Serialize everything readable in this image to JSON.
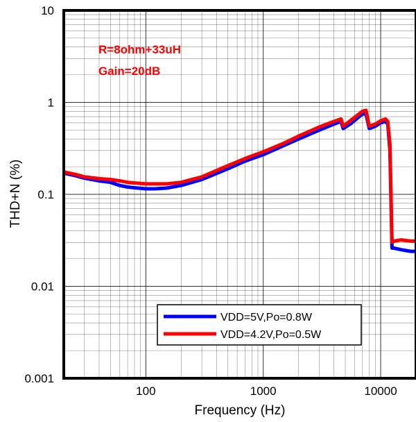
{
  "chart_data": {
    "type": "line",
    "xlabel": "Frequency (Hz)",
    "ylabel": "THD+N (%)",
    "xscale": "log",
    "yscale": "log",
    "xlim": [
      20,
      20000
    ],
    "ylim": [
      0.001,
      10
    ],
    "grid": true,
    "legend_position": "bottom-center",
    "x_tick_labels": [
      "100",
      "1000",
      "10000"
    ],
    "y_tick_labels": [
      "0.001",
      "0.01",
      "0.1",
      "1",
      "10"
    ],
    "annotations": [
      "R=8ohm+33uH",
      "Gain=20dB"
    ],
    "annotation_color": "#ff0000",
    "series": [
      {
        "name": "VDD=5V,Po=0.8W",
        "color": "#0000ff",
        "x": [
          20,
          25,
          30,
          40,
          50,
          60,
          70,
          80,
          100,
          120,
          150,
          200,
          300,
          500,
          700,
          1000,
          1500,
          2000,
          3000,
          4000,
          4600,
          4800,
          5500,
          7000,
          7500,
          8000,
          9000,
          10000,
          11000,
          11500,
          12000,
          12500,
          13000,
          15000,
          18000,
          20000
        ],
        "values": [
          0.17,
          0.16,
          0.15,
          0.14,
          0.135,
          0.125,
          0.12,
          0.118,
          0.115,
          0.115,
          0.117,
          0.125,
          0.145,
          0.19,
          0.23,
          0.27,
          0.34,
          0.4,
          0.5,
          0.58,
          0.62,
          0.52,
          0.58,
          0.75,
          0.75,
          0.52,
          0.55,
          0.6,
          0.62,
          0.58,
          0.3,
          0.026,
          0.026,
          0.025,
          0.024,
          0.024
        ]
      },
      {
        "name": "VDD=4.2V,Po=0.5W",
        "color": "#ff0000",
        "x": [
          20,
          25,
          30,
          40,
          50,
          60,
          70,
          80,
          100,
          120,
          150,
          200,
          300,
          500,
          700,
          1000,
          1500,
          2000,
          3000,
          4000,
          4600,
          4800,
          5500,
          7000,
          7500,
          8000,
          9000,
          10000,
          11000,
          11500,
          12000,
          12500,
          13000,
          15000,
          18000,
          20000
        ],
        "values": [
          0.175,
          0.165,
          0.155,
          0.148,
          0.145,
          0.14,
          0.135,
          0.133,
          0.13,
          0.13,
          0.13,
          0.135,
          0.155,
          0.205,
          0.245,
          0.29,
          0.36,
          0.43,
          0.54,
          0.62,
          0.66,
          0.55,
          0.63,
          0.8,
          0.82,
          0.55,
          0.58,
          0.63,
          0.66,
          0.62,
          0.35,
          0.03,
          0.031,
          0.032,
          0.031,
          0.031
        ]
      }
    ]
  }
}
